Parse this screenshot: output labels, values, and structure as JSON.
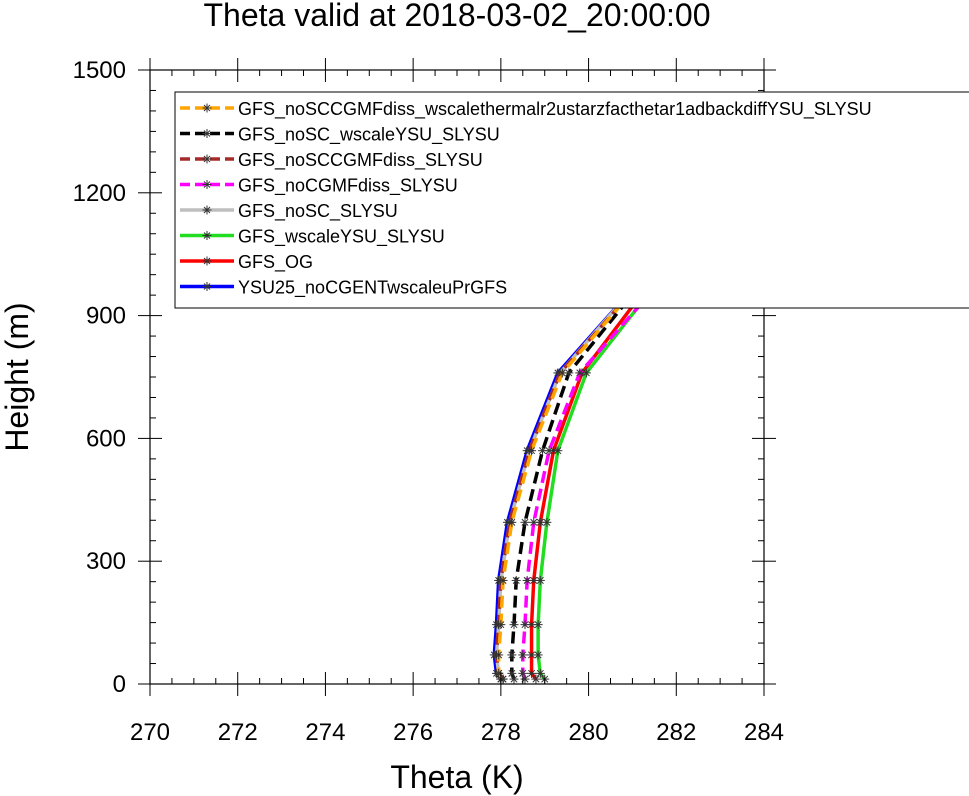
{
  "chart_data": {
    "type": "line",
    "title": "Theta valid at 2018-03-02_20:00:00",
    "xlabel": "Theta (K)",
    "ylabel": "Height (m)",
    "xlim": [
      270,
      284
    ],
    "ylim": [
      0,
      1500
    ],
    "xticks": [
      "270",
      "272",
      "274",
      "276",
      "278",
      "280",
      "282",
      "284"
    ],
    "yticks": [
      "0",
      "300",
      "600",
      "900",
      "1200",
      "1500"
    ],
    "xtick_values": [
      270,
      272,
      274,
      276,
      278,
      280,
      282,
      284
    ],
    "ytick_values": [
      0,
      300,
      600,
      900,
      1200,
      1500
    ],
    "grid": false,
    "legend_position": "top-left",
    "heights": [
      12,
      26,
      71,
      145,
      253,
      395,
      570,
      760,
      965,
      1210
    ],
    "series": [
      {
        "name": "GFS_noSCCGMFdiss_wscalethermalr2ustarzfacthetar1adbackdiffYSU_SLYSU",
        "color": "#ffa500",
        "dash": "dashed",
        "values": [
          278.0,
          277.95,
          277.95,
          278.0,
          278.05,
          278.25,
          278.7,
          279.4,
          281.05,
          283.9
        ]
      },
      {
        "name": "GFS_noSC_wscaleYSU_SLYSU",
        "color": "#000000",
        "dash": "dashed",
        "values": [
          278.3,
          278.25,
          278.25,
          278.3,
          278.35,
          278.55,
          278.95,
          279.55,
          281.1,
          283.95
        ]
      },
      {
        "name": "GFS_noSCCGMFdiss_SLYSU",
        "color": "#a52a2a",
        "dash": "dashed",
        "values": [
          278.05,
          277.95,
          277.9,
          277.95,
          278.0,
          278.2,
          278.65,
          279.35,
          281.05,
          283.8
        ]
      },
      {
        "name": "GFS_noCGMFdiss_SLYSU",
        "color": "#ff00ff",
        "dash": "dashed",
        "values": [
          278.55,
          278.5,
          278.5,
          278.55,
          278.6,
          278.75,
          279.1,
          279.8,
          281.5,
          284.0
        ]
      },
      {
        "name": "GFS_noSC_SLYSU",
        "color": "#bebebe",
        "dash": "solid",
        "values": [
          278.05,
          277.95,
          277.9,
          277.95,
          278.0,
          278.2,
          278.65,
          279.35,
          281.0,
          283.7
        ]
      },
      {
        "name": "GFS_wscaleYSU_SLYSU",
        "color": "#22dd22",
        "dash": "solid",
        "values": [
          279.0,
          278.9,
          278.85,
          278.85,
          278.9,
          279.05,
          279.3,
          279.95,
          281.45,
          283.95
        ]
      },
      {
        "name": "GFS_OG",
        "color": "#ff0000",
        "dash": "solid",
        "values": [
          278.8,
          278.7,
          278.7,
          278.7,
          278.75,
          278.9,
          279.2,
          279.85,
          281.3,
          283.85
        ]
      },
      {
        "name": "YSU25_noCGENTwscaleuPrGFS",
        "color": "#0000ff",
        "dash": "solid",
        "values": [
          278.0,
          277.9,
          277.85,
          277.9,
          277.95,
          278.15,
          278.6,
          279.3,
          281.0,
          283.8
        ]
      }
    ]
  }
}
